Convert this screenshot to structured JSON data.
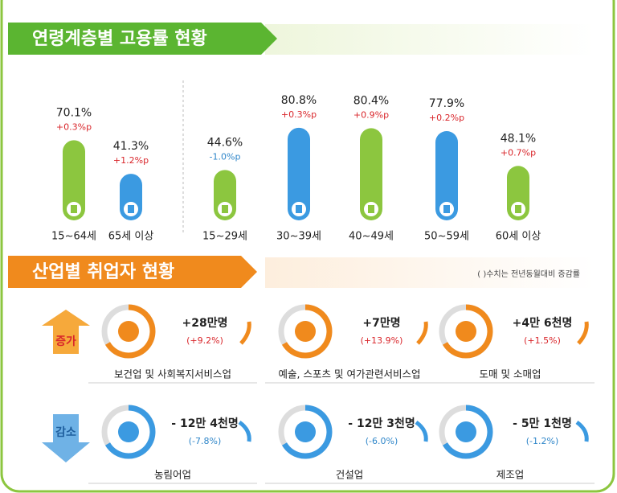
{
  "employment": {
    "title": "연령계층별 고용률 현황",
    "bars": [
      {
        "label": "15~64세",
        "value": 70.1,
        "value_label": "70.1%",
        "change": "+0.3%p",
        "color": "#8cc63f",
        "change_color": "#d9262b"
      },
      {
        "label": "65세 이상",
        "value": 41.3,
        "value_label": "41.3%",
        "change": "+1.2%p",
        "color": "#3b9ae1",
        "change_color": "#d9262b"
      },
      {
        "label": "15~29세",
        "value": 44.6,
        "value_label": "44.6%",
        "change": "-1.0%p",
        "color": "#8cc63f",
        "change_color": "#2f86c9"
      },
      {
        "label": "30~39세",
        "value": 80.8,
        "value_label": "80.8%",
        "change": "+0.3%p",
        "color": "#3b9ae1",
        "change_color": "#d9262b"
      },
      {
        "label": "40~49세",
        "value": 80.4,
        "value_label": "80.4%",
        "change": "+0.9%p",
        "color": "#8cc63f",
        "change_color": "#d9262b"
      },
      {
        "label": "50~59세",
        "value": 77.9,
        "value_label": "77.9%",
        "change": "+0.2%p",
        "color": "#3b9ae1",
        "change_color": "#d9262b"
      },
      {
        "label": "60세 이상",
        "value": 48.1,
        "value_label": "48.1%",
        "change": "+0.7%p",
        "color": "#8cc63f",
        "change_color": "#d9262b"
      }
    ]
  },
  "industry": {
    "title": "산업별 취업자 현황",
    "note": "( )수치는 전년동월대비 증감률",
    "increase": {
      "label": "증가",
      "items": [
        {
          "name": "보건업 및 사회복지서비스업",
          "change": "+28만명",
          "rate": "(+9.2%)"
        },
        {
          "name": "예술, 스포츠 및 여가관련서비스업",
          "change": "+7만명",
          "rate": "(+13.9%)"
        },
        {
          "name": "도매 및 소매업",
          "change": "+4만 6천명",
          "rate": "(+1.5%)"
        }
      ]
    },
    "decrease": {
      "label": "감소",
      "items": [
        {
          "name": "농림어업",
          "change": "- 12만 4천명",
          "rate": "(-7.8%)"
        },
        {
          "name": "건설업",
          "change": "- 12만 3천명",
          "rate": "(-6.0%)"
        },
        {
          "name": "제조업",
          "change": "- 5만 1천명",
          "rate": "(-1.2%)"
        }
      ]
    }
  }
}
